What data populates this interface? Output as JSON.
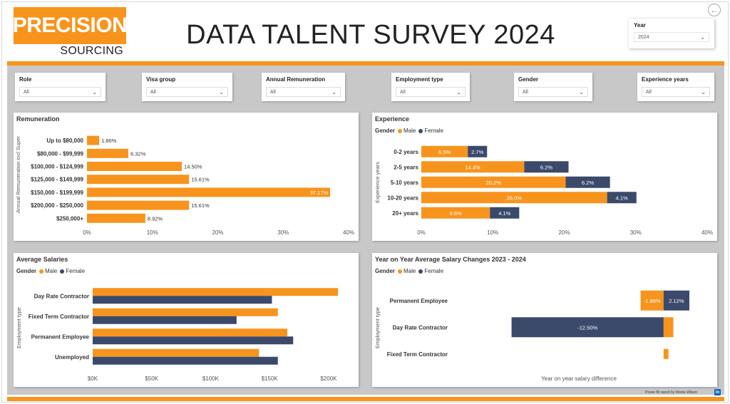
{
  "header": {
    "logo_top": "PRECISION",
    "logo_bottom": "SOURCING",
    "title": "DATA TALENT SURVEY 2024",
    "year_label": "Year",
    "year_value": "2024"
  },
  "filters": [
    {
      "label": "Role",
      "value": "All"
    },
    {
      "label": "Visa group",
      "value": "All"
    },
    {
      "label": "Annual Remuneration",
      "value": "All"
    },
    {
      "label": "Employment type",
      "value": "All"
    },
    {
      "label": "Gender",
      "value": "All"
    },
    {
      "label": "Experience years",
      "value": "All"
    }
  ],
  "colors": {
    "male": "#f7941d",
    "female": "#3b4a6b",
    "accent": "#f7941d"
  },
  "footer": {
    "credit": "Power BI report by Monte Wilson",
    "linkedin": "in"
  },
  "legend": {
    "title": "Gender",
    "male": "Male",
    "female": "Female"
  },
  "chart_data": [
    {
      "type": "bar",
      "title": "Remuneration",
      "ylabel": "Annual Remuneration incl Super",
      "categories": [
        "Up to $80,000",
        "$80,000 - $99,999",
        "$100,000 - $124,999",
        "$125,000 - $149,999",
        "$150,000 - $199,999",
        "$200,000 - $250,000",
        "$250,000+"
      ],
      "values": [
        1.86,
        6.32,
        14.5,
        15.61,
        37.17,
        15.61,
        8.92
      ],
      "labels": [
        "1.86%",
        "6.32%",
        "14.50%",
        "15.61%",
        "37.17%",
        "15.61%",
        "8.92%"
      ],
      "xticks": [
        "0%",
        "10%",
        "20%",
        "30%",
        "40%"
      ],
      "xlim": [
        0,
        40
      ]
    },
    {
      "type": "bar",
      "title": "Experience",
      "ylabel": "Experience years",
      "categories": [
        "0-2 years",
        "2-5 years",
        "5-10 years",
        "10-20 years",
        "20+ years"
      ],
      "series": [
        {
          "name": "Male",
          "values": [
            6.5,
            14.4,
            20.2,
            26.0,
            9.6
          ],
          "labels": [
            "6.5%",
            "14.4%",
            "20.2%",
            "26.0%",
            "9.6%"
          ]
        },
        {
          "name": "Female",
          "values": [
            2.7,
            6.2,
            6.2,
            4.1,
            4.1
          ],
          "labels": [
            "2.7%",
            "6.2%",
            "6.2%",
            "4.1%",
            "4.1%"
          ]
        }
      ],
      "stacked": true,
      "xticks": [
        "0%",
        "10%",
        "20%",
        "30%",
        "40%"
      ],
      "xlim": [
        0,
        40
      ]
    },
    {
      "type": "bar",
      "title": "Average Salaries",
      "ylabel": "Employment type",
      "categories": [
        "Day Rate Contractor",
        "Fixed Term Contractor",
        "Permanent Employee",
        "Unemployed"
      ],
      "series": [
        {
          "name": "Male",
          "values": [
            208000,
            157000,
            165000,
            141000
          ]
        },
        {
          "name": "Female",
          "values": [
            152000,
            122000,
            170000,
            157000
          ]
        }
      ],
      "xticks": [
        "$0K",
        "$50K",
        "$100K",
        "$150K",
        "$200K"
      ],
      "xlim": [
        0,
        220000
      ]
    },
    {
      "type": "bar",
      "title": "Year on Year Average Salary Changes 2023 - 2024",
      "ylabel": "Employment type",
      "xlabel": "Year on year salary difference",
      "categories": [
        "Permanent Employee",
        "Day Rate Contractor",
        "Fixed Term Contractor"
      ],
      "series": [
        {
          "name": "Male",
          "values": [
            -1.89,
            0.8,
            0.4
          ],
          "labels": [
            "-1.89%",
            "",
            ""
          ]
        },
        {
          "name": "Female",
          "values": [
            2.12,
            -12.5,
            0
          ],
          "labels": [
            "2.12%",
            "-12.50%",
            ""
          ]
        }
      ],
      "xlim": [
        -14,
        3
      ]
    }
  ]
}
